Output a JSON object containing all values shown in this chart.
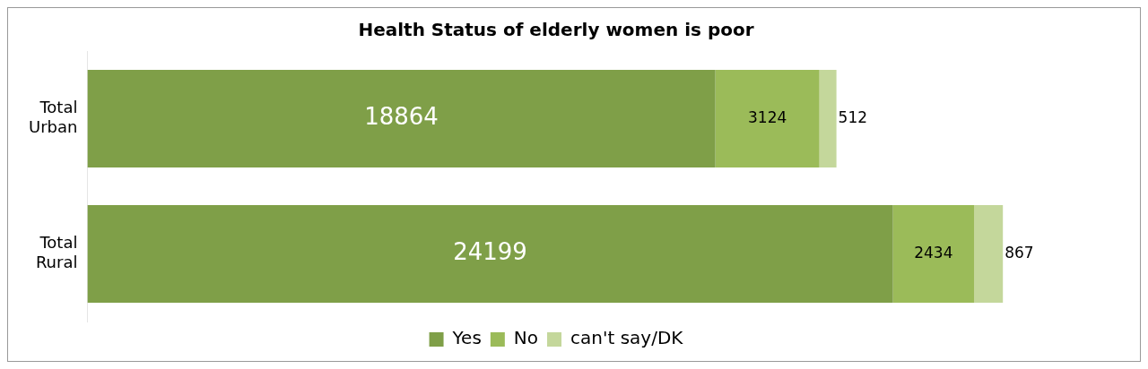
{
  "chart_data": {
    "type": "bar",
    "orientation": "horizontal",
    "stacked": true,
    "title": "Health Status of elderly women is poor",
    "categories": [
      "Total Urban",
      "Total Rural"
    ],
    "series": [
      {
        "name": "Yes",
        "color": "#7f9f48",
        "values": [
          18864,
          24199
        ]
      },
      {
        "name": "No",
        "color": "#9bbb59",
        "values": [
          3124,
          2434
        ]
      },
      {
        "name": "can't say/DK",
        "color": "#c4d79b",
        "values": [
          512,
          867
        ]
      }
    ],
    "data_labels": true,
    "legend": "bottom",
    "grid": false
  }
}
